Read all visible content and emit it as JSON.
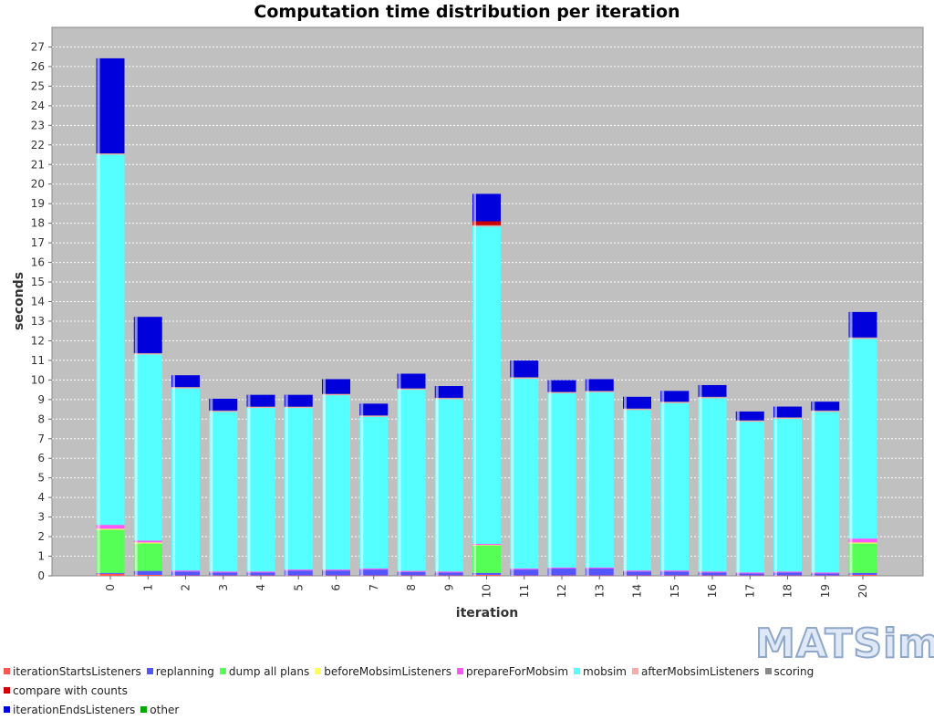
{
  "chart_data": {
    "type": "bar",
    "stacked": true,
    "title": "Computation time distribution per iteration",
    "xlabel": "iteration",
    "ylabel": "seconds",
    "ylim": [
      0,
      28
    ],
    "yticks": [
      0,
      1,
      2,
      3,
      4,
      5,
      6,
      7,
      8,
      9,
      10,
      11,
      12,
      13,
      14,
      15,
      16,
      17,
      18,
      19,
      20,
      21,
      22,
      23,
      24,
      25,
      26,
      27
    ],
    "grid": true,
    "legend_position": "bottom",
    "categories": [
      "0",
      "1",
      "2",
      "3",
      "4",
      "5",
      "6",
      "7",
      "8",
      "9",
      "10",
      "11",
      "12",
      "13",
      "14",
      "15",
      "16",
      "17",
      "18",
      "19",
      "20"
    ],
    "series": [
      {
        "name": "iterationStartsListeners",
        "color": "#ff5555",
        "values": [
          0.1,
          0.05,
          0.02,
          0.02,
          0.02,
          0.02,
          0.02,
          0.02,
          0.02,
          0.02,
          0.05,
          0.02,
          0.02,
          0.02,
          0.02,
          0.02,
          0.02,
          0.02,
          0.02,
          0.02,
          0.05
        ]
      },
      {
        "name": "replanning",
        "color": "#5555ff",
        "values": [
          0.05,
          0.2,
          0.2,
          0.15,
          0.15,
          0.25,
          0.25,
          0.3,
          0.18,
          0.15,
          0.1,
          0.3,
          0.35,
          0.35,
          0.2,
          0.2,
          0.15,
          0.1,
          0.15,
          0.1,
          0.1
        ]
      },
      {
        "name": "dump all plans",
        "color": "#55ff55",
        "values": [
          2.2,
          1.4,
          0,
          0,
          0,
          0,
          0,
          0,
          0,
          0,
          1.4,
          0,
          0,
          0,
          0,
          0,
          0,
          0,
          0,
          0,
          1.5
        ]
      },
      {
        "name": "beforeMobsimListeners",
        "color": "#ffff55",
        "values": [
          0.05,
          0.05,
          0,
          0,
          0,
          0,
          0,
          0,
          0,
          0,
          0.03,
          0,
          0,
          0,
          0,
          0,
          0,
          0,
          0,
          0,
          0.05
        ]
      },
      {
        "name": "prepareForMobsim",
        "color": "#ff55ff",
        "values": [
          0.2,
          0.1,
          0.05,
          0.05,
          0.05,
          0.05,
          0.05,
          0.05,
          0.05,
          0.05,
          0.05,
          0.05,
          0.05,
          0.05,
          0.05,
          0.05,
          0.05,
          0.05,
          0.05,
          0.05,
          0.2
        ]
      },
      {
        "name": "mobsim",
        "color": "#55ffff",
        "values": [
          18.9,
          9.5,
          9.3,
          8.15,
          8.35,
          8.25,
          8.9,
          7.75,
          9.25,
          8.8,
          16.2,
          9.7,
          8.9,
          8.95,
          8.2,
          8.55,
          8.85,
          7.7,
          7.8,
          8.2,
          10.2
        ]
      },
      {
        "name": "afterMobsimListeners",
        "color": "#ffaaaa",
        "values": [
          0.05,
          0.05,
          0.05,
          0.05,
          0.05,
          0.05,
          0.05,
          0.05,
          0.05,
          0.05,
          0.05,
          0.05,
          0.05,
          0.05,
          0.05,
          0.05,
          0.05,
          0.05,
          0.05,
          0.05,
          0.05
        ]
      },
      {
        "name": "scoring",
        "color": "#888888",
        "values": [
          0.02,
          0.02,
          0.02,
          0.02,
          0.02,
          0.02,
          0.02,
          0.02,
          0.02,
          0.02,
          0.02,
          0.02,
          0.02,
          0.02,
          0.02,
          0.02,
          0.02,
          0.02,
          0.02,
          0.02,
          0.02
        ]
      },
      {
        "name": "compare with counts",
        "color": "#cc0000",
        "values": [
          0,
          0,
          0,
          0,
          0,
          0,
          0,
          0,
          0,
          0,
          0.2,
          0,
          0,
          0,
          0,
          0,
          0,
          0,
          0,
          0,
          0
        ]
      },
      {
        "name": "iterationEndsListeners",
        "color": "#0000dd",
        "values": [
          4.85,
          1.85,
          0.6,
          0.6,
          0.6,
          0.6,
          0.75,
          0.6,
          0.75,
          0.6,
          1.4,
          0.85,
          0.6,
          0.6,
          0.6,
          0.55,
          0.6,
          0.45,
          0.55,
          0.45,
          1.3
        ]
      },
      {
        "name": "other",
        "color": "#00aa00",
        "values": [
          0,
          0,
          0,
          0,
          0,
          0,
          0,
          0,
          0,
          0,
          0,
          0,
          0,
          0,
          0,
          0,
          0,
          0,
          0,
          0,
          0
        ]
      }
    ]
  },
  "logo": {
    "text": "MATSim"
  }
}
